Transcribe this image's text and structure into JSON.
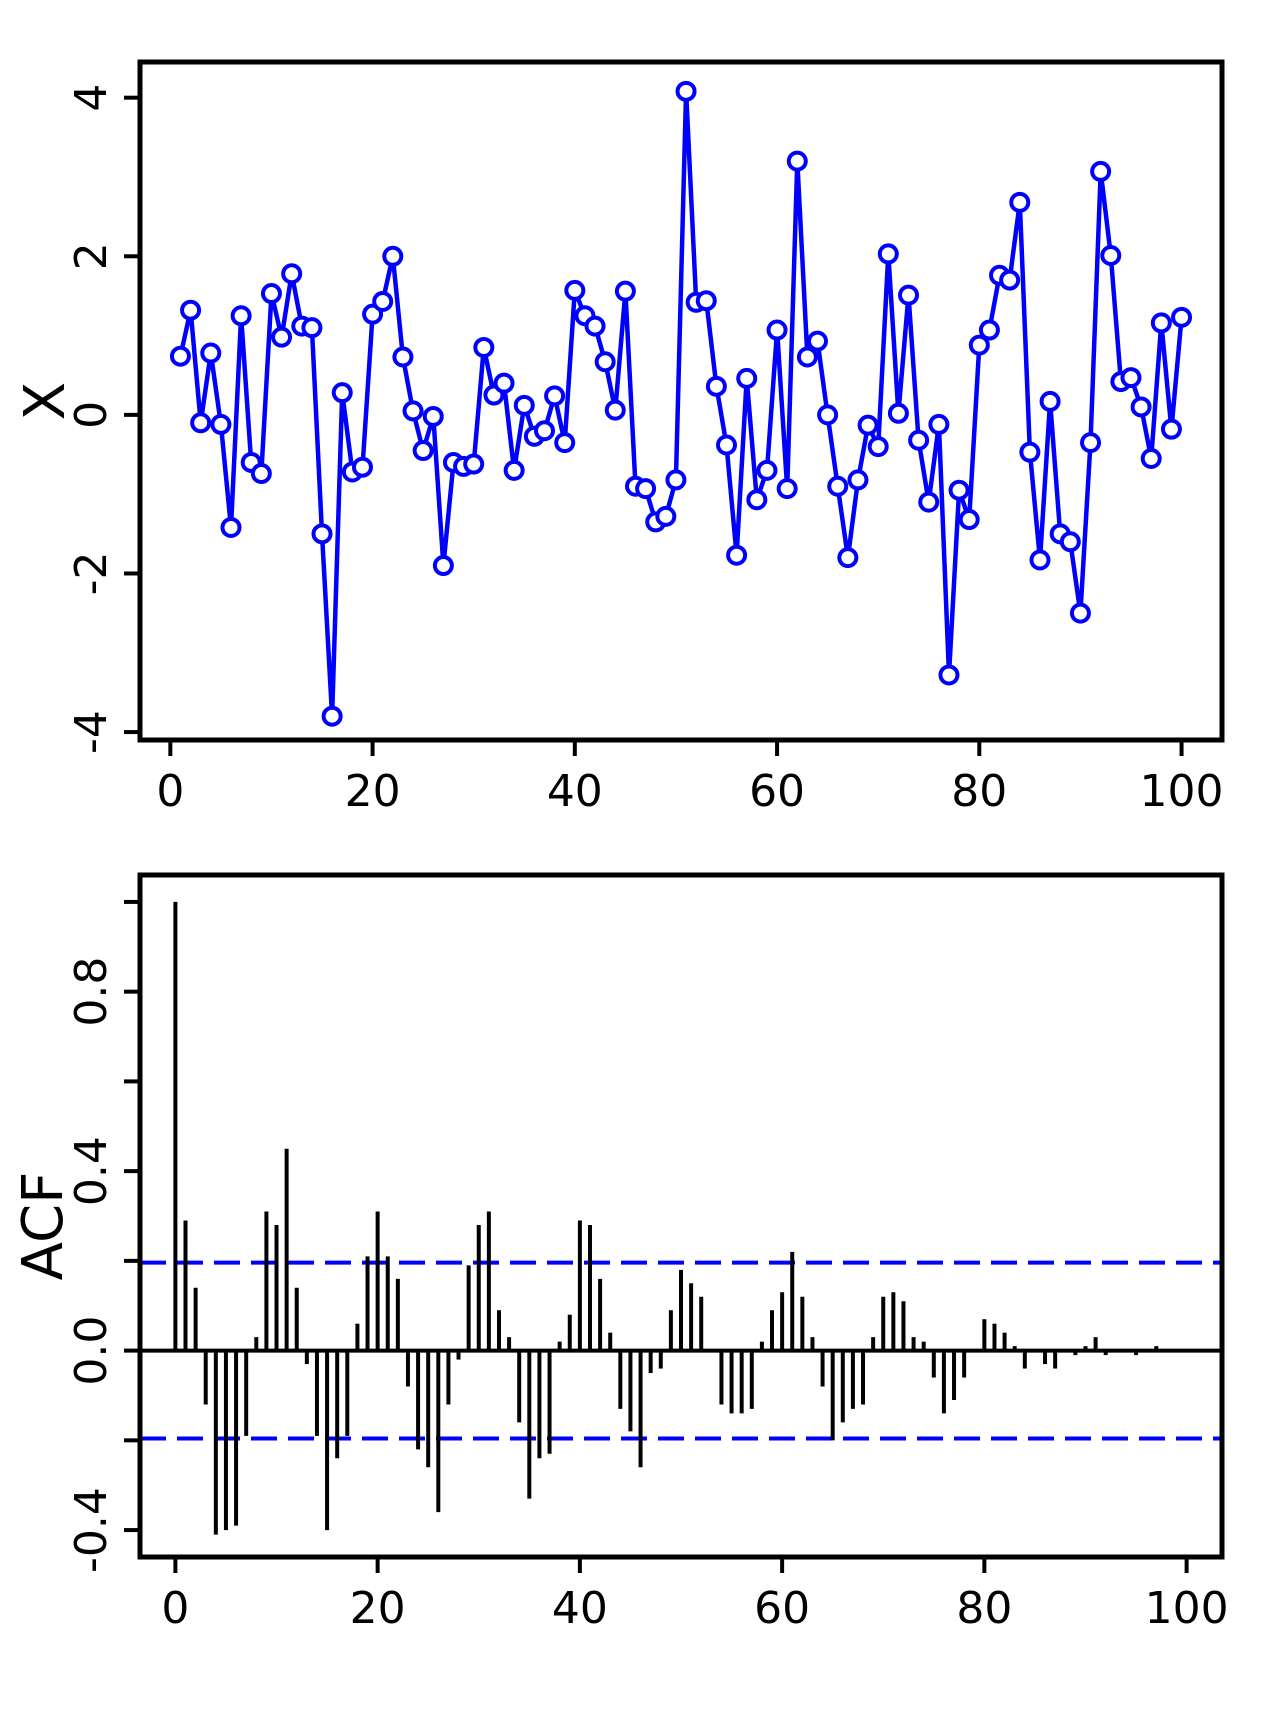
{
  "chart_data": [
    {
      "type": "line",
      "ylabel": "X",
      "xlabel": "",
      "title": "",
      "xlim": [
        -3,
        104
      ],
      "ylim": [
        -4.1,
        4.45
      ],
      "xticks": [
        "0",
        "20",
        "40",
        "60",
        "80",
        "100"
      ],
      "yticks": [
        "-4",
        "-2",
        "0",
        "2",
        "4"
      ],
      "color": "#0000ff",
      "x": [
        1,
        2,
        3,
        4,
        5,
        6,
        7,
        8,
        9,
        10,
        11,
        12,
        13,
        14,
        15,
        16,
        17,
        18,
        19,
        20,
        21,
        22,
        23,
        24,
        25,
        26,
        27,
        28,
        29,
        30,
        31,
        32,
        33,
        34,
        35,
        36,
        37,
        38,
        39,
        40,
        41,
        42,
        43,
        44,
        45,
        46,
        47,
        48,
        49,
        50,
        51,
        52,
        53,
        54,
        55,
        56,
        57,
        58,
        59,
        60,
        61,
        62,
        63,
        64,
        65,
        66,
        67,
        68,
        69,
        70,
        71,
        72,
        73,
        74,
        75,
        76,
        77,
        78,
        79,
        80,
        81,
        82,
        83,
        84,
        85,
        86,
        87,
        88,
        89,
        90,
        91,
        92,
        93,
        94,
        95,
        96,
        97,
        98,
        99,
        100
      ],
      "values": [
        0.74,
        1.32,
        -0.1,
        0.78,
        -0.12,
        -1.42,
        1.25,
        -0.6,
        -0.74,
        1.53,
        0.98,
        1.78,
        1.12,
        1.1,
        -1.5,
        -3.8,
        0.28,
        -0.72,
        -0.66,
        1.27,
        1.43,
        2.0,
        0.73,
        0.05,
        -0.45,
        -0.02,
        -1.9,
        -0.6,
        -0.65,
        -0.62,
        0.85,
        0.25,
        0.4,
        -0.7,
        0.12,
        -0.27,
        -0.2,
        0.24,
        -0.35,
        1.57,
        1.25,
        1.12,
        0.67,
        0.06,
        1.56,
        -0.9,
        -0.93,
        -1.35,
        -1.28,
        -0.82,
        4.08,
        1.42,
        1.44,
        0.36,
        -0.38,
        -1.77,
        0.46,
        -1.07,
        -0.7,
        1.07,
        -0.93,
        3.2,
        0.73,
        0.93,
        0.0,
        -0.9,
        -1.8,
        -0.82,
        -0.13,
        -0.4,
        2.03,
        0.02,
        1.51,
        -0.32,
        -1.1,
        -0.12,
        -3.28,
        -0.95,
        -1.32,
        0.88,
        1.07,
        1.76,
        1.7,
        2.68,
        -0.47,
        -1.83,
        0.17,
        -1.5,
        -1.6,
        -2.5,
        -0.35,
        3.07,
        2.01,
        0.42,
        0.47,
        0.1,
        -0.55,
        1.16,
        -0.18,
        1.23
      ]
    },
    {
      "type": "bar",
      "ylabel": "ACF",
      "xlabel": "",
      "title": "",
      "xlim": [
        -3.5,
        103.5
      ],
      "ylim": [
        -0.46,
        1.06
      ],
      "xticks": [
        "0",
        "20",
        "40",
        "60",
        "80",
        "100"
      ],
      "yticks": [
        "-0.4",
        "0.0",
        "0.4",
        "0.8"
      ],
      "confidence_band": 0.196,
      "band_color": "#0000ff",
      "lags": [
        0,
        1,
        2,
        3,
        4,
        5,
        6,
        7,
        8,
        9,
        10,
        11,
        12,
        13,
        14,
        15,
        16,
        17,
        18,
        19,
        20,
        21,
        22,
        23,
        24,
        25,
        26,
        27,
        28,
        29,
        30,
        31,
        32,
        33,
        34,
        35,
        36,
        37,
        38,
        39,
        40,
        41,
        42,
        43,
        44,
        45,
        46,
        47,
        48,
        49,
        50,
        51,
        52,
        53,
        54,
        55,
        56,
        57,
        58,
        59,
        60,
        61,
        62,
        63,
        64,
        65,
        66,
        67,
        68,
        69,
        70,
        71,
        72,
        73,
        74,
        75,
        76,
        77,
        78,
        79,
        80,
        81,
        82,
        83,
        84,
        85,
        86,
        87,
        88,
        89,
        90,
        91,
        92,
        93,
        94,
        95,
        96,
        97,
        98,
        99
      ],
      "values": [
        1.0,
        0.29,
        0.14,
        -0.12,
        -0.41,
        -0.4,
        -0.39,
        -0.19,
        0.03,
        0.31,
        0.28,
        0.45,
        0.14,
        -0.03,
        -0.19,
        -0.4,
        -0.24,
        -0.19,
        0.06,
        0.21,
        0.31,
        0.21,
        0.16,
        -0.08,
        -0.22,
        -0.26,
        -0.36,
        -0.12,
        -0.02,
        0.19,
        0.28,
        0.31,
        0.09,
        0.03,
        -0.16,
        -0.33,
        -0.24,
        -0.23,
        0.02,
        0.08,
        0.29,
        0.28,
        0.16,
        0.04,
        -0.13,
        -0.18,
        -0.26,
        -0.05,
        -0.04,
        0.09,
        0.18,
        0.15,
        0.12,
        0.0,
        -0.12,
        -0.14,
        -0.14,
        -0.13,
        0.02,
        0.09,
        0.13,
        0.22,
        0.12,
        0.03,
        -0.08,
        -0.2,
        -0.16,
        -0.13,
        -0.12,
        0.03,
        0.12,
        0.13,
        0.11,
        0.03,
        0.02,
        -0.06,
        -0.14,
        -0.11,
        -0.06,
        0.0,
        0.07,
        0.06,
        0.04,
        0.01,
        -0.04,
        0.0,
        -0.03,
        -0.04,
        0.0,
        -0.01,
        0.01,
        0.03,
        -0.01,
        0.0,
        0.0,
        -0.01,
        0.0,
        0.01,
        0.0,
        0.0
      ]
    }
  ]
}
